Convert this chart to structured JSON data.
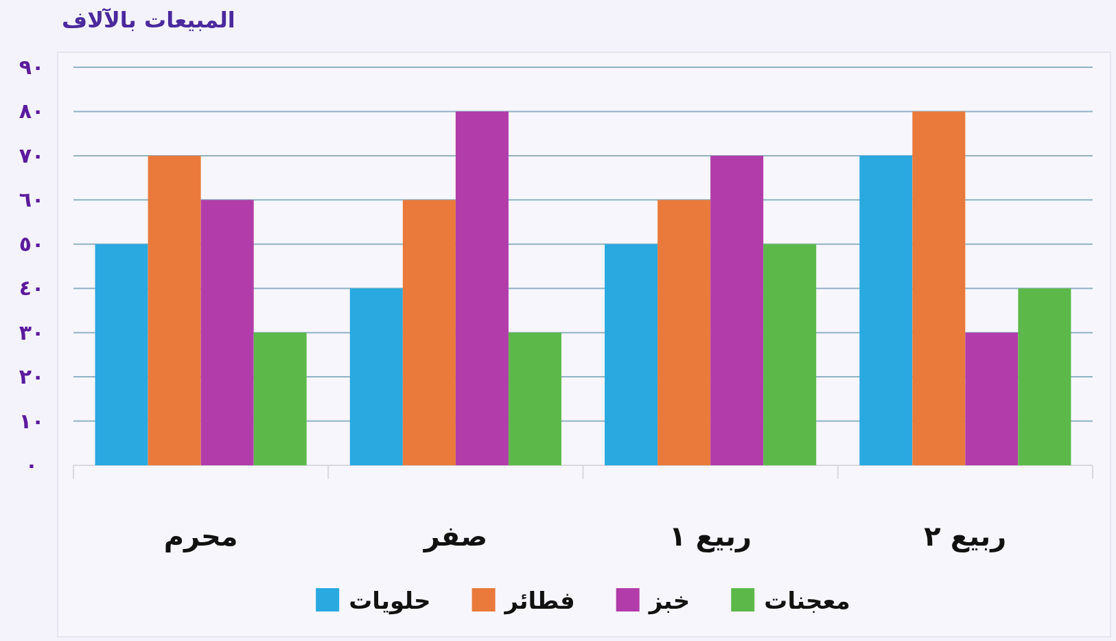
{
  "chart_data": {
    "type": "bar",
    "ylabel": "المبيعات بالآلاف",
    "categories": [
      "محرم",
      "صفر",
      "ربيع ١",
      "ربيع ٢"
    ],
    "series": [
      {
        "name": "حلويات",
        "color": "#29a9e0",
        "values": [
          50,
          40,
          50,
          70
        ]
      },
      {
        "name": "فطائر",
        "color": "#e97a3c",
        "values": [
          70,
          60,
          60,
          80
        ]
      },
      {
        "name": "خبز",
        "color": "#b23ca9",
        "values": [
          60,
          80,
          70,
          30
        ]
      },
      {
        "name": "معجنات",
        "color": "#5cb949",
        "values": [
          30,
          30,
          50,
          40
        ]
      }
    ],
    "ylim": [
      0,
      90
    ],
    "yticks": [
      {
        "value": 0,
        "label": "٠"
      },
      {
        "value": 10,
        "label": "١٠"
      },
      {
        "value": 20,
        "label": "٢٠"
      },
      {
        "value": 30,
        "label": "٣٠"
      },
      {
        "value": 40,
        "label": "٤٠"
      },
      {
        "value": 50,
        "label": "٥٠"
      },
      {
        "value": 60,
        "label": "٦٠"
      },
      {
        "value": 70,
        "label": "٧٠"
      },
      {
        "value": 80,
        "label": "٨٠"
      },
      {
        "value": 90,
        "label": "٩٠"
      }
    ],
    "grid": "y",
    "legend": "bottom"
  }
}
